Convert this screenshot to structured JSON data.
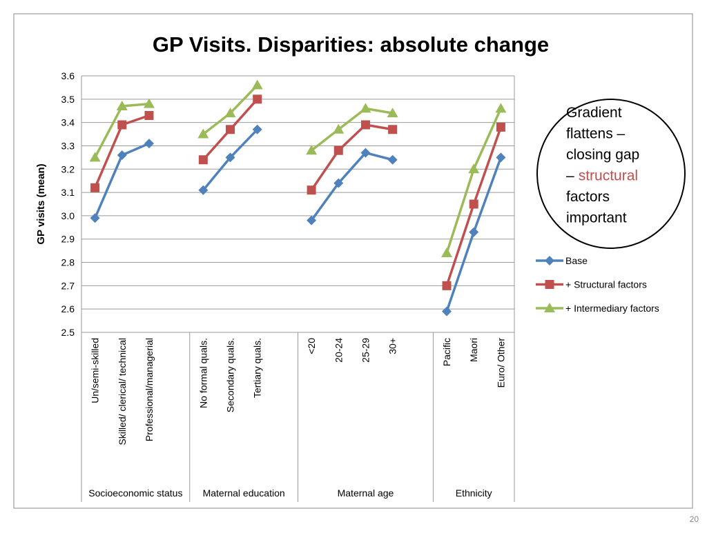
{
  "chart_data": {
    "type": "line",
    "title": "GP Visits. Disparities: absolute change",
    "y_label": "GP visits (mean)",
    "categories": [
      "Un/semi-skilled",
      "Skilled/ clerical/ technical",
      "Professional/managerial",
      null,
      "No formal quals.",
      "Secondary quals.",
      "Tertiary quals.",
      null,
      "<20",
      "20-24",
      "25-29",
      "30+",
      null,
      "Pacific",
      "Maori",
      "Euro/ Other"
    ],
    "groups": [
      "Socioeconomic status",
      "Maternal education",
      "Maternal age",
      "Ethnicity"
    ],
    "series": [
      {
        "name": "Base",
        "color": "#4f81bd",
        "marker": "diamond",
        "values": [
          2.99,
          3.26,
          3.31,
          null,
          3.11,
          3.25,
          3.37,
          null,
          2.98,
          3.14,
          3.27,
          3.24,
          null,
          2.59,
          2.93,
          3.25
        ]
      },
      {
        "name": "+ Structural factors",
        "color": "#c0504d",
        "marker": "square",
        "values": [
          3.12,
          3.39,
          3.43,
          null,
          3.24,
          3.37,
          3.5,
          null,
          3.11,
          3.28,
          3.39,
          3.37,
          null,
          2.7,
          3.05,
          3.38
        ]
      },
      {
        "name": "+ Intermediary factors",
        "color": "#9bbb59",
        "marker": "triangle",
        "values": [
          3.25,
          3.47,
          3.48,
          null,
          3.35,
          3.44,
          3.56,
          null,
          3.28,
          3.37,
          3.46,
          3.44,
          null,
          2.84,
          3.2,
          3.46
        ]
      }
    ],
    "ylim": [
      2.5,
      3.6
    ],
    "yticks": [
      2.5,
      2.6,
      2.7,
      2.8,
      2.9,
      {
        "value": 3,
        "label": "3.0"
      },
      3.1,
      3.2,
      3.3,
      3.4,
      3.5,
      3.6
    ],
    "grid": true,
    "legend": "right",
    "annotation": [
      [
        {
          "text": "Gradient"
        }
      ],
      [
        {
          "text": "flattens –"
        }
      ],
      [
        {
          "text": "closing gap"
        }
      ],
      [
        {
          "text": "–"
        },
        {
          "text": "structural",
          "color": "#c0504d"
        }
      ],
      [
        {
          "text": "factors"
        }
      ],
      [
        {
          "text": "important"
        }
      ]
    ],
    "page_number": "20"
  }
}
